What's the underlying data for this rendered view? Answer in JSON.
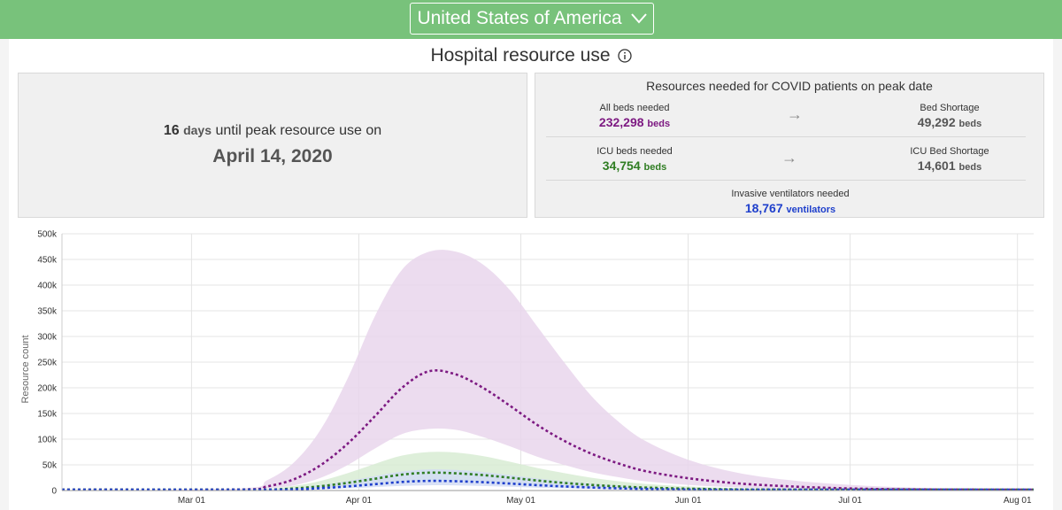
{
  "header": {
    "country": "United States of America",
    "title": "Hospital resource use"
  },
  "peak": {
    "days": "16",
    "days_word": "days",
    "text": "until peak resource use on",
    "date": "April 14, 2020"
  },
  "resources": {
    "title": "Resources needed for COVID patients on peak date",
    "all_beds": {
      "label": "All beds needed",
      "value": "232,298",
      "unit": "beds"
    },
    "bed_shortage": {
      "label": "Bed Shortage",
      "value": "49,292",
      "unit": "beds"
    },
    "icu_beds": {
      "label": "ICU beds needed",
      "value": "34,754",
      "unit": "beds"
    },
    "icu_shortage": {
      "label": "ICU Bed Shortage",
      "value": "14,601",
      "unit": "beds"
    },
    "ventilators": {
      "label": "Invasive ventilators needed",
      "value": "18,767",
      "unit": "ventilators"
    }
  },
  "colors": {
    "all_beds": "#7d1a82",
    "all_beds_band": "#e9d6ec",
    "icu": "#2f7d22",
    "icu_band": "#d8ecd3",
    "vent": "#1e3fcc",
    "vent_band": "#d2dcf5"
  },
  "chart_data": {
    "type": "line",
    "title": "",
    "xlabel": "",
    "ylabel": "Resource count",
    "x_ticks": [
      "Mar 01",
      "Apr 01",
      "May 01",
      "Jun 01",
      "Jul 01",
      "Aug 01"
    ],
    "y_ticks": [
      "0",
      "50k",
      "100k",
      "150k",
      "200k",
      "250k",
      "300k",
      "350k",
      "400k",
      "450k",
      "500k"
    ],
    "xlim": [
      "2020-02-06",
      "2020-08-04"
    ],
    "ylim": [
      0,
      500000
    ],
    "grid": true,
    "series": [
      {
        "key": "all_beds",
        "x": [
          "2020-02-06",
          "2020-03-10",
          "2020-03-15",
          "2020-03-20",
          "2020-03-25",
          "2020-03-30",
          "2020-04-04",
          "2020-04-09",
          "2020-04-14",
          "2020-04-19",
          "2020-04-24",
          "2020-04-29",
          "2020-05-04",
          "2020-05-09",
          "2020-05-14",
          "2020-05-19",
          "2020-05-24",
          "2020-06-01",
          "2020-06-10",
          "2020-06-20",
          "2020-07-01",
          "2020-07-15",
          "2020-08-04"
        ],
        "y": [
          0,
          2000,
          8000,
          22000,
          50000,
          92000,
          145000,
          200000,
          232298,
          226000,
          200000,
          165000,
          128000,
          97000,
          72000,
          53000,
          38000,
          24000,
          14000,
          8000,
          4000,
          2000,
          1000
        ],
        "lower": [
          0,
          1000,
          4000,
          10000,
          25000,
          50000,
          82000,
          110000,
          120000,
          118000,
          104000,
          86000,
          66000,
          50000,
          36000,
          26000,
          18000,
          11000,
          6000,
          3000,
          1500,
          700,
          300
        ],
        "upper": [
          0,
          4000,
          20000,
          55000,
          120000,
          220000,
          340000,
          430000,
          465000,
          465000,
          440000,
          390000,
          320000,
          250000,
          185000,
          135000,
          97000,
          60000,
          35000,
          20000,
          11000,
          5000,
          2000
        ]
      },
      {
        "key": "icu",
        "x": [
          "2020-02-06",
          "2020-03-10",
          "2020-03-15",
          "2020-03-20",
          "2020-03-25",
          "2020-03-30",
          "2020-04-04",
          "2020-04-09",
          "2020-04-14",
          "2020-04-19",
          "2020-04-24",
          "2020-04-29",
          "2020-05-04",
          "2020-05-09",
          "2020-05-14",
          "2020-05-19",
          "2020-05-24",
          "2020-06-01",
          "2020-06-10",
          "2020-06-20",
          "2020-07-01",
          "2020-07-15",
          "2020-08-04"
        ],
        "y": [
          0,
          400,
          1500,
          4000,
          8500,
          15000,
          23000,
          31000,
          34754,
          33500,
          30000,
          25000,
          19500,
          14800,
          11000,
          8000,
          5800,
          3600,
          2100,
          1200,
          600,
          300,
          150
        ],
        "lower": [
          0,
          200,
          800,
          2000,
          4500,
          8000,
          12500,
          17000,
          19000,
          18500,
          16500,
          13500,
          10500,
          8000,
          6000,
          4400,
          3200,
          2000,
          1200,
          700,
          350,
          170,
          80
        ],
        "upper": [
          0,
          800,
          3200,
          9000,
          19000,
          34000,
          52000,
          68000,
          75000,
          74000,
          67000,
          56000,
          44000,
          34000,
          25000,
          18000,
          13000,
          8000,
          4700,
          2700,
          1400,
          700,
          300
        ]
      },
      {
        "key": "vent",
        "x": [
          "2020-02-06",
          "2020-03-10",
          "2020-03-15",
          "2020-03-20",
          "2020-03-25",
          "2020-03-30",
          "2020-04-04",
          "2020-04-09",
          "2020-04-14",
          "2020-04-19",
          "2020-04-24",
          "2020-04-29",
          "2020-05-04",
          "2020-05-09",
          "2020-05-14",
          "2020-05-19",
          "2020-05-24",
          "2020-06-01",
          "2020-06-10",
          "2020-06-20",
          "2020-07-01",
          "2020-07-15",
          "2020-08-04"
        ],
        "y": [
          0,
          200,
          800,
          2200,
          4600,
          8100,
          12400,
          16700,
          18767,
          18100,
          16200,
          13500,
          10500,
          8000,
          5900,
          4300,
          3100,
          1900,
          1100,
          650,
          320,
          160,
          80
        ],
        "lower": [
          0,
          100,
          400,
          1100,
          2400,
          4300,
          6700,
          9100,
          10200,
          9900,
          8900,
          7300,
          5700,
          4300,
          3200,
          2300,
          1700,
          1000,
          600,
          350,
          170,
          90,
          40
        ],
        "upper": [
          0,
          450,
          1800,
          5000,
          10500,
          18500,
          28000,
          37000,
          41000,
          40000,
          36000,
          30000,
          23500,
          18000,
          13300,
          9700,
          7000,
          4300,
          2500,
          1500,
          750,
          370,
          180
        ]
      }
    ]
  }
}
